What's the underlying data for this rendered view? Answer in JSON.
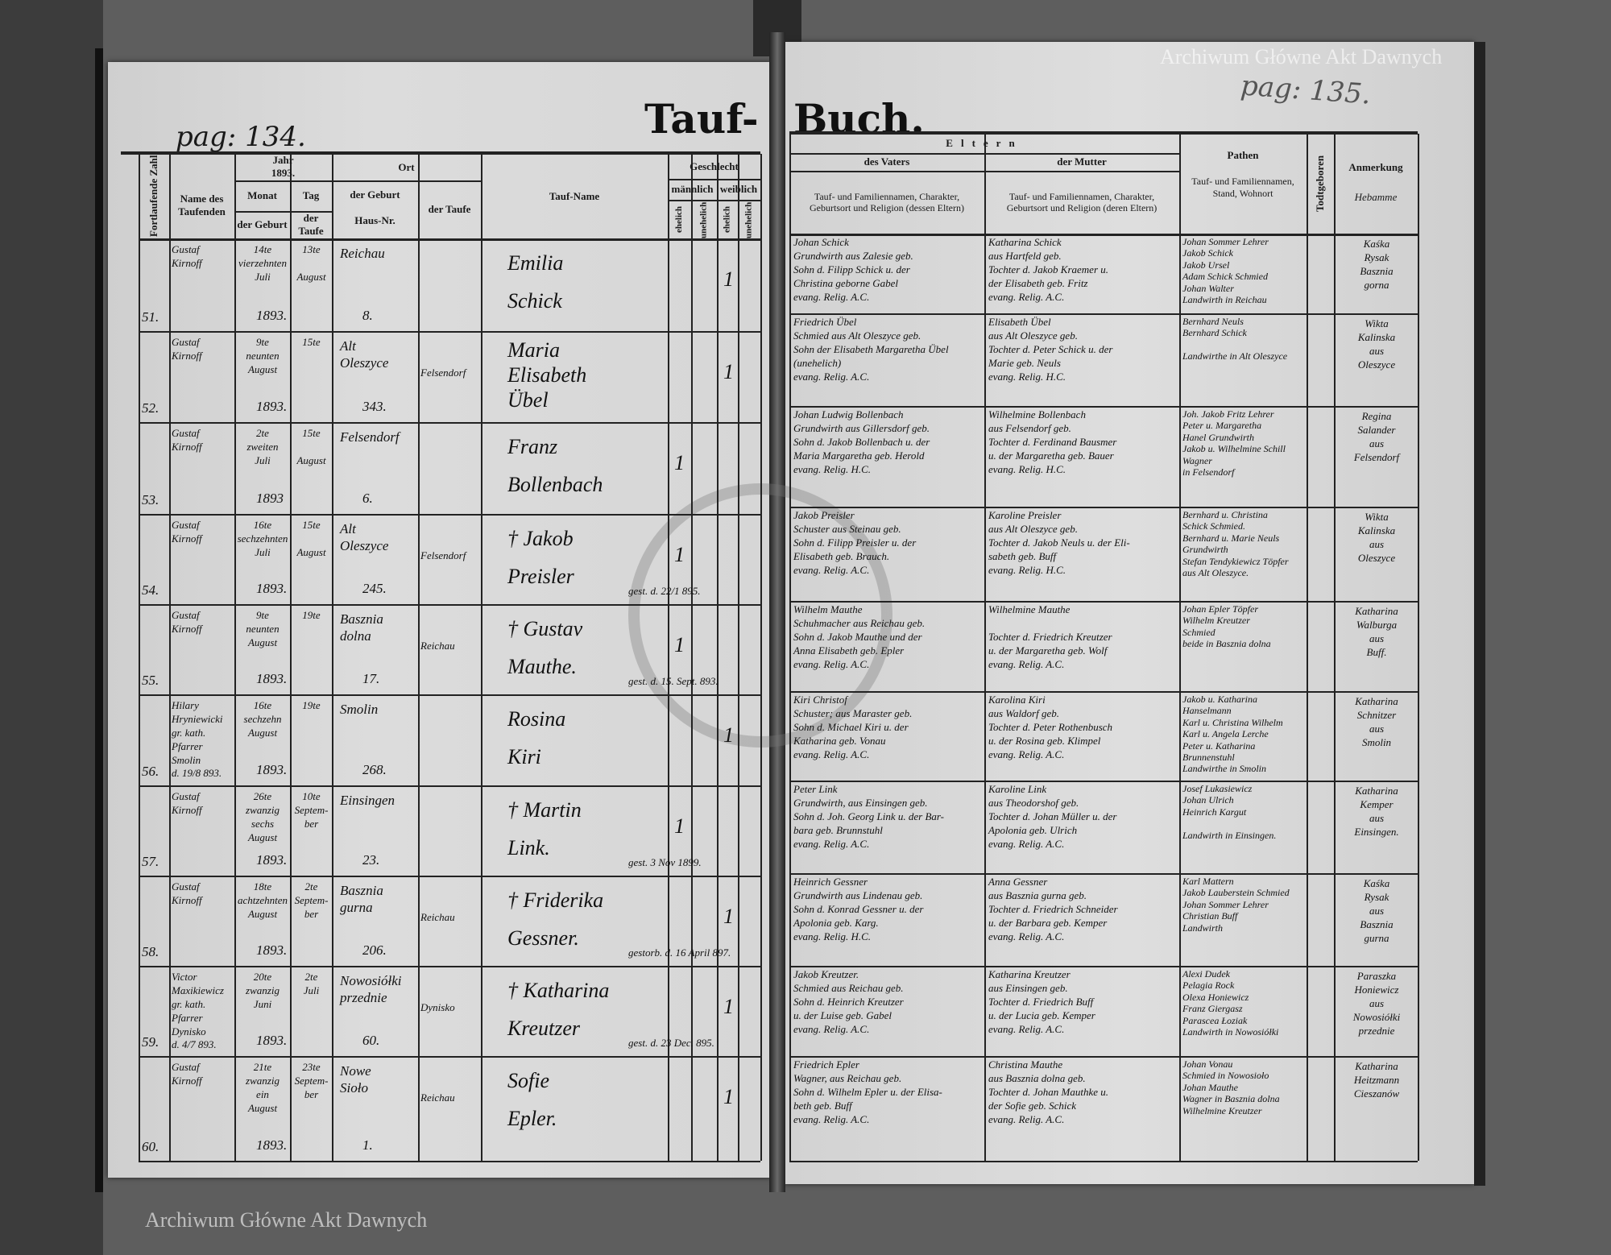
{
  "book_title": {
    "left": "Tauf-",
    "right": "Buch."
  },
  "page_numbers": {
    "left": "pag: 134.",
    "right": "pag: 135."
  },
  "watermarks": [
    "Archiwum Główne Akt Dawnych",
    "Archiwum Główne Akt Dawnych"
  ],
  "left_headers": {
    "num": "Fortlaufende Zahl",
    "priest": "Name des Taufenden",
    "year": "Jahr",
    "year_value": "1893.",
    "month": "Monat",
    "day": "Tag",
    "birth": "der Geburt",
    "baptism": "der Taufe",
    "place": "Ort",
    "place_birth": "der Geburt",
    "house": "Haus-Nr.",
    "place_baptism": "der Taufe",
    "name": "Tauf-Name",
    "sex": "Geschlecht",
    "male": "männlich",
    "female": "weiblich",
    "legit": "ehelich",
    "illegit": "unehelich"
  },
  "right_headers": {
    "parents": "Eltern",
    "father": "des Vaters",
    "father_desc": "Tauf- und Familiennamen, Charakter, Geburtsort und Religion (dessen Eltern)",
    "mother": "der Mutter",
    "mother_desc": "Tauf- und Familiennamen, Charakter, Geburtsort und Religion (deren Eltern)",
    "godparents": "Pathen",
    "godparents_desc": "Tauf- und Familiennamen, Stand, Wohnort",
    "stillborn": "Todtgeboren",
    "remark": "Anmerkung",
    "remark_sub": "Hebamme"
  },
  "entries": [
    {
      "num": "51.",
      "priest": "Gustaf\nKirnoff",
      "birth": "14te\nvierzehnten\nJuli",
      "baptism": "13te\n\nAugust",
      "year": "1893.",
      "place": "Reichau",
      "house": "8.",
      "bapt_place": "",
      "name": "Emilia\nSchick",
      "sex": [
        "",
        "",
        "1",
        ""
      ],
      "note": "",
      "father": "Johan Schick\nGrundwirth aus Zalesie geb.\nSohn d. Filipp Schick u. der\nChristina geborne Gabel\nevang. Relig. A.C.",
      "mother": "Katharina Schick\naus Hartfeld geb.\nTochter d. Jakob Kraemer u.\nder Elisabeth geb. Fritz\nevang. Relig. A.C.",
      "godparents": "Johan Sommer Lehrer\nJakob Schick\nJakob Ursel\nAdam Schick Schmied\nJohan Walter\nLandwirth in Reichau",
      "remark": "Kaśka\nRysak\nBasznia\ngorna"
    },
    {
      "num": "52.",
      "priest": "Gustaf\nKirnoff",
      "birth": "9te\nneunten\nAugust",
      "baptism": "15te",
      "year": "1893.",
      "place": "Alt\nOleszyce",
      "house": "343.",
      "bapt_place": "Felsendorf",
      "name": "Maria\nElisabeth\nÜbel",
      "sex": [
        "",
        "",
        "1",
        ""
      ],
      "note": "",
      "father": "Friedrich Übel\nSchmied aus Alt Oleszyce geb.\nSohn der Elisabeth Margaretha Übel\n(unehelich)\nevang. Relig. A.C.",
      "mother": "Elisabeth Übel\naus Alt Oleszyce geb.\nTochter d. Peter Schick u. der\nMarie geb. Neuls\nevang. Relig. H.C.",
      "godparents": "Bernhard Neuls\nBernhard Schick\n\nLandwirthe in Alt Oleszyce",
      "remark": "Wikta\nKalinska\naus\nOleszyce"
    },
    {
      "num": "53.",
      "priest": "Gustaf\nKirnoff",
      "birth": "2te\nzweiten\nJuli",
      "baptism": "15te\n\nAugust",
      "year": "1893",
      "place": "Felsendorf",
      "house": "6.",
      "bapt_place": "",
      "name": "Franz\nBollenbach",
      "sex": [
        "1",
        "",
        "",
        ""
      ],
      "note": "",
      "father": "Johan Ludwig Bollenbach\nGrundwirth aus Gillersdorf geb.\nSohn d. Jakob Bollenbach u. der\nMaria Margaretha geb. Herold\nevang. Relig. H.C.",
      "mother": "Wilhelmine Bollenbach\naus Felsendorf geb.\nTochter d. Ferdinand Bausmer\nu. der Margaretha geb. Bauer\nevang. Relig. H.C.",
      "godparents": "Joh. Jakob Fritz Lehrer\nPeter u. Margaretha\nHanel Grundwirth\nJakob u. Wilhelmine Schill\nWagner\nin Felsendorf",
      "remark": "Regina\nSalander\naus\nFelsendorf"
    },
    {
      "num": "54.",
      "priest": "Gustaf\nKirnoff",
      "birth": "16te\nsechzehnten\nJuli",
      "baptism": "15te\n\nAugust",
      "year": "1893.",
      "place": "Alt\nOleszyce",
      "house": "245.",
      "bapt_place": "Felsendorf",
      "name": "† Jakob\nPreisler",
      "sex": [
        "1",
        "",
        "",
        ""
      ],
      "note": "gest. d. 22/1 895.",
      "father": "Jakob Preisler\nSchuster aus Steinau geb.\nSohn d. Filipp Preisler u. der\nElisabeth geb. Brauch.\nevang. Relig. A.C.",
      "mother": "Karoline Preisler\naus Alt Oleszyce geb.\nTochter d. Jakob Neuls u. der Eli-\nsabeth geb. Buff\nevang. Relig. H.C.",
      "godparents": "Bernhard u. Christina\nSchick Schmied.\nBernhard u. Marie Neuls\nGrundwirth\nStefan Tendykiewicz Töpfer\naus Alt Oleszyce.",
      "remark": "Wikta\nKalinska\naus\nOleszyce"
    },
    {
      "num": "55.",
      "priest": "Gustaf\nKirnoff",
      "birth": "9te\nneunten\nAugust",
      "baptism": "19te",
      "year": "1893.",
      "place": "Basznia\ndolna",
      "house": "17.",
      "bapt_place": "Reichau",
      "name": "† Gustav\nMauthe.",
      "sex": [
        "1",
        "",
        "",
        ""
      ],
      "note": "gest. d. 15. Sept. 893.",
      "father": "Wilhelm Mauthe\nSchuhmacher aus Reichau geb.\nSohn d. Jakob Mauthe und der\nAnna Elisabeth geb. Epler\nevang. Relig. A.C.",
      "mother": "Wilhelmine Mauthe\n\nTochter d. Friedrich Kreutzer\nu. der Margaretha geb. Wolf\nevang. Relig. A.C.",
      "godparents": "Johan Epler Töpfer\nWilhelm Kreutzer\nSchmied\nbeide in Basznia dolna",
      "remark": "Katharina\nWalburga\naus\nBuff."
    },
    {
      "num": "56.",
      "priest": "Hilary\nHryniewicki\ngr. kath.\nPfarrer\nSmolin\nd. 19/8 893.",
      "birth": "16te\nsechzehn\nAugust",
      "baptism": "19te",
      "year": "1893.",
      "place": "Smolin",
      "house": "268.",
      "bapt_place": "",
      "name": "Rosina\nKiri",
      "sex": [
        "",
        "",
        "1",
        ""
      ],
      "note": "",
      "father": "Kiri Christof\nSchuster; aus Maraster geb.\nSohn d. Michael Kiri u. der\nKatharina geb. Vonau\nevang. Relig. A.C.",
      "mother": "Karolina Kiri\naus Waldorf geb.\nTochter d. Peter Rothenbusch\nu. der Rosina geb. Klimpel\nevang. Relig. A.C.",
      "godparents": "Jakob u. Katharina Hanselmann\nKarl u. Christina Wilhelm\nKarl u. Angela Lerche\nPeter u. Katharina Brunnenstuhl\nLandwirthe in Smolin",
      "remark": "Katharina\nSchnitzer\naus\nSmolin"
    },
    {
      "num": "57.",
      "priest": "Gustaf\nKirnoff",
      "birth": "26te\nzwanzig\nsechs\nAugust",
      "baptism": "10te\nSeptem-\nber",
      "year": "1893.",
      "place": "Einsingen",
      "house": "23.",
      "bapt_place": "",
      "name": "† Martin\nLink.",
      "sex": [
        "1",
        "",
        "",
        ""
      ],
      "note": "gest. 3 Nov 1899.",
      "father": "Peter Link\nGrundwirth, aus Einsingen geb.\nSohn d. Joh. Georg Link u. der Bar-\nbara geb. Brunnstuhl\nevang. Relig. A.C.",
      "mother": "Karoline Link\naus Theodorshof geb.\nTochter d. Johan Müller u. der\nApolonia geb. Ulrich\nevang. Relig. A.C.",
      "godparents": "Josef Lukasiewicz\nJohan Ulrich\nHeinrich Kargut\n\nLandwirth in Einsingen.",
      "remark": "Katharina\nKemper\naus\nEinsingen."
    },
    {
      "num": "58.",
      "priest": "Gustaf\nKirnoff",
      "birth": "18te\nachtzehnten\nAugust",
      "baptism": "2te\nSeptem-\nber",
      "year": "1893.",
      "place": "Basznia\ngurna",
      "house": "206.",
      "bapt_place": "Reichau",
      "name": "† Friderika\nGessner.",
      "sex": [
        "",
        "",
        "1",
        ""
      ],
      "note": "gestorb. d. 16 April 897.",
      "father": "Heinrich Gessner\nGrundwirth aus Lindenau geb.\nSohn d. Konrad Gessner u. der\nApolonia geb. Karg.\nevang. Relig. H.C.",
      "mother": "Anna Gessner\naus Basznia gurna geb.\nTochter d. Friedrich Schneider\nu. der Barbara geb. Kemper\nevang. Relig. A.C.",
      "godparents": "Karl Mattern\nJakob Lauberstein Schmied\nJohan Sommer Lehrer\nChristian Buff\nLandwirth",
      "remark": "Kaśka\nRysak\naus\nBasznia\ngurna"
    },
    {
      "num": "59.",
      "priest": "Victor\nMaxikiewicz\ngr. kath.\nPfarrer\nDynisko\nd. 4/7 893.",
      "birth": "20te\nzwanzig\nJuni",
      "baptism": "2te\nJuli",
      "year": "1893.",
      "place": "Nowosiółki\nprzednie",
      "house": "60.",
      "bapt_place": "Dynisko",
      "name": "† Katharina\nKreutzer",
      "sex": [
        "",
        "",
        "1",
        ""
      ],
      "note": "gest. d. 23 Dec. 895.",
      "father": "Jakob Kreutzer.\nSchmied aus Reichau geb.\nSohn d. Heinrich Kreutzer\nu. der Luise geb. Gabel\nevang. Relig. A.C.",
      "mother": "Katharina Kreutzer\naus Einsingen geb.\nTochter d. Friedrich Buff\nu. der Lucia geb. Kemper\nevang. Relig. A.C.",
      "godparents": "Alexi Dudek\nPelagia Rock\nOlexa Honiewicz\nFranz Giergasz\nParascea Łoziak\nLandwirth in Nowosiółki",
      "remark": "Paraszka\nHoniewicz\naus\nNowosiółki\nprzednie"
    },
    {
      "num": "60.",
      "priest": "Gustaf\nKirnoff",
      "birth": "21te\nzwanzig\nein\nAugust",
      "baptism": "23te\nSeptem-\nber",
      "year": "1893.",
      "place": "Nowe\nSioło",
      "house": "1.",
      "bapt_place": "Reichau",
      "name": "Sofie\nEpler.",
      "sex": [
        "",
        "",
        "1",
        ""
      ],
      "note": "",
      "father": "Friedrich Epler\nWagner, aus Reichau geb.\nSohn d. Wilhelm Epler u. der Elisa-\nbeth geb. Buff\nevang. Relig. A.C.",
      "mother": "Christina Mauthe\naus Basznia dolna geb.\nTochter d. Johan Mauthke u.\nder Sofie geb. Schick\nevang. Relig. A.C.",
      "godparents": "Johan Vonau\nSchmied in Nowosioło\nJohan Mauthe\nWagner in Basznia dolna\nWilhelmine Kreutzer",
      "remark": "Katharina\nHeitzmann\nCieszanów"
    }
  ]
}
